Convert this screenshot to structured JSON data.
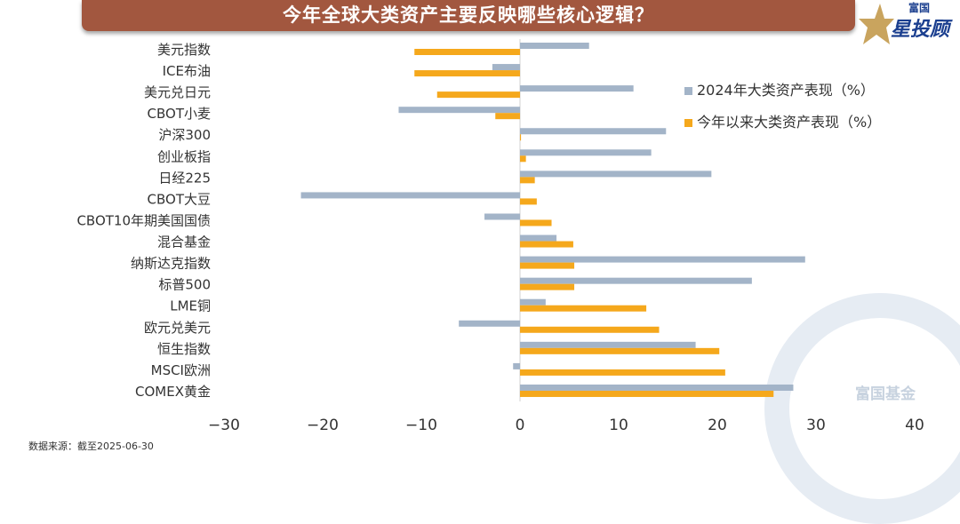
{
  "title": "今年全球大类资产主要反映哪些核心逻辑？",
  "logo": {
    "small": "富国",
    "big": "星投顾",
    "icon": "star-icon"
  },
  "watermark": "富国基金",
  "source": "数据来源：截至2025-06-30",
  "colors": {
    "series_2024": "#a3b4c8",
    "series_ytd": "#f5a81c",
    "title_bg": "#a2573f"
  },
  "chart_data": {
    "type": "bar",
    "orientation": "horizontal",
    "categories": [
      "美元指数",
      "ICE布油",
      "美元兑日元",
      "CBOT小麦",
      "沪深300",
      "创业板指",
      "日经225",
      "CBOT大豆",
      "CBOT10年期美国国债",
      "混合基金",
      "纳斯达克指数",
      "标普500",
      "LME铜",
      "欧元兑美元",
      "恒生指数",
      "MSCI欧洲",
      "COMEX黄金"
    ],
    "series": [
      {
        "name": "2024年大类资产表现（%）",
        "values": [
          7.0,
          -2.8,
          11.5,
          -12.3,
          14.8,
          13.3,
          19.4,
          -22.2,
          -3.6,
          3.7,
          28.9,
          23.5,
          2.6,
          -6.2,
          17.8,
          -0.7,
          27.7
        ]
      },
      {
        "name": "今年以来大类资产表现（%）",
        "values": [
          -10.7,
          -10.7,
          -8.4,
          -2.5,
          0.1,
          0.6,
          1.5,
          1.7,
          3.2,
          5.4,
          5.5,
          5.5,
          12.8,
          14.1,
          20.2,
          20.8,
          25.7
        ]
      }
    ],
    "xlim": [
      -30,
      40
    ],
    "xticks": [
      "-30",
      "-20",
      "-10",
      "0",
      "10",
      "20",
      "30",
      "40"
    ],
    "grid": false,
    "legend": "right"
  }
}
